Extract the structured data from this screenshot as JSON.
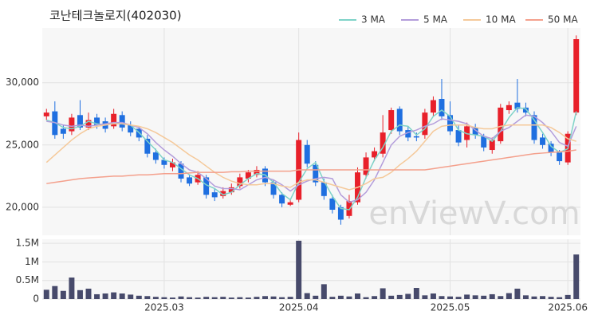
{
  "chart_data": [
    {
      "type": "candlestick",
      "title": "코난테크놀로지(402030)",
      "watermark": "enViewV.com",
      "up_color": "#e8202a",
      "down_color": "#1f6fe0",
      "open": [
        27300,
        27700,
        26300,
        26100,
        27400,
        26400,
        27200,
        26900,
        26500,
        27400,
        26600,
        26300,
        25500,
        24400,
        23800,
        23200,
        23500,
        22400,
        22000,
        22400,
        21200,
        20900,
        21200,
        21700,
        22300,
        22600,
        23100,
        22000,
        21000,
        20200,
        20600,
        25000,
        23400,
        22000,
        20700,
        20000,
        19300,
        20400,
        22600,
        24000,
        24300,
        26200,
        27900,
        26200,
        25700,
        25800,
        27600,
        28700,
        27400,
        26200,
        25400,
        26400,
        25700,
        24600,
        25300,
        27800,
        28400,
        28000,
        27400,
        25600,
        25100,
        24400,
        23600,
        27600
      ],
      "high": [
        27900,
        28500,
        26600,
        27500,
        28600,
        27600,
        27500,
        27200,
        27900,
        27700,
        26900,
        26500,
        25800,
        24700,
        24000,
        23900,
        23700,
        22600,
        22900,
        22600,
        21500,
        21600,
        21900,
        22700,
        23000,
        23300,
        23300,
        22200,
        21200,
        20600,
        26000,
        25400,
        23700,
        22300,
        21000,
        20200,
        21000,
        23200,
        24400,
        24800,
        27400,
        28000,
        28100,
        26500,
        26000,
        27900,
        28900,
        30300,
        28500,
        26600,
        26800,
        26700,
        25900,
        25600,
        28300,
        28500,
        30300,
        28400,
        27700,
        25900,
        25300,
        24600,
        26100,
        33800
      ],
      "low": [
        27000,
        25500,
        25500,
        25800,
        26200,
        26200,
        26300,
        26000,
        26300,
        26100,
        25700,
        25300,
        24000,
        23500,
        23100,
        22900,
        22000,
        21700,
        21800,
        20700,
        20500,
        20700,
        21000,
        21500,
        22000,
        22400,
        21700,
        20700,
        20000,
        20100,
        20400,
        23200,
        21700,
        20600,
        19500,
        18600,
        19100,
        20200,
        22300,
        23700,
        24000,
        25900,
        25800,
        25300,
        25300,
        25500,
        27300,
        27000,
        25800,
        24900,
        24800,
        25500,
        24500,
        24300,
        25100,
        27500,
        27600,
        27300,
        25100,
        24700,
        24100,
        23400,
        23400,
        27400
      ],
      "close": [
        27600,
        25800,
        25900,
        27200,
        26400,
        27000,
        26600,
        26300,
        27500,
        26400,
        26000,
        25600,
        24300,
        23800,
        23400,
        23600,
        22300,
        21900,
        22600,
        21000,
        20800,
        21300,
        21600,
        22400,
        22800,
        23000,
        22000,
        21000,
        20300,
        20400,
        25400,
        23500,
        22000,
        20900,
        19800,
        19000,
        20500,
        22800,
        24000,
        24500,
        26000,
        27800,
        26100,
        25600,
        25600,
        27600,
        28600,
        27300,
        26100,
        25200,
        26500,
        25800,
        24800,
        25400,
        28000,
        28200,
        27900,
        27600,
        25400,
        25000,
        24400,
        23700,
        25900,
        33500
      ],
      "series": [
        {
          "name": "3 MA",
          "color": "#7fd3c8",
          "values": [
            27000,
            26800,
            26400,
            26300,
            26500,
            26900,
            26700,
            26600,
            26800,
            26700,
            26600,
            26000,
            25300,
            24600,
            23800,
            23600,
            23100,
            22600,
            22300,
            21800,
            21500,
            21000,
            21200,
            21800,
            22300,
            22700,
            22600,
            22000,
            21100,
            20600,
            22000,
            23100,
            23600,
            22100,
            20900,
            19900,
            19800,
            20800,
            22400,
            23800,
            24800,
            26100,
            26600,
            26500,
            25800,
            26300,
            27300,
            27800,
            27300,
            26200,
            25900,
            25800,
            25700,
            25300,
            26100,
            27200,
            28000,
            27900,
            27000,
            26000,
            24900,
            24400,
            24700,
            27700
          ]
        },
        {
          "name": "5 MA",
          "color": "#b39ddb",
          "values": [
            26900,
            26800,
            26600,
            26500,
            26600,
            26500,
            26600,
            26700,
            26800,
            26800,
            26600,
            26400,
            25900,
            25200,
            24600,
            24100,
            23500,
            23000,
            22800,
            22300,
            21700,
            21500,
            21500,
            21400,
            21800,
            22200,
            22400,
            22200,
            21800,
            21300,
            21800,
            22100,
            22300,
            22400,
            22300,
            21000,
            20400,
            20600,
            21200,
            22200,
            23600,
            25000,
            25700,
            26000,
            26200,
            26500,
            26700,
            27100,
            27000,
            26900,
            26700,
            26200,
            25700,
            25500,
            26100,
            26400,
            26900,
            27400,
            27300,
            26800,
            26100,
            25200,
            24900,
            26500
          ]
        },
        {
          "name": "10 MA",
          "color": "#f5c99a",
          "values": [
            23600,
            24200,
            24800,
            25400,
            25900,
            26300,
            26500,
            26600,
            26700,
            26700,
            26600,
            26500,
            26300,
            26000,
            25600,
            25200,
            24700,
            24200,
            23800,
            23300,
            22800,
            22400,
            22100,
            21900,
            21800,
            21800,
            21900,
            21900,
            21700,
            21600,
            22000,
            22200,
            22200,
            22000,
            21800,
            21600,
            21400,
            21600,
            21900,
            22300,
            22400,
            22800,
            23400,
            23900,
            24500,
            25300,
            26100,
            26500,
            26600,
            26600,
            26600,
            26400,
            26300,
            26300,
            26500,
            26600,
            26600,
            26600,
            26600,
            26600,
            26400,
            26000,
            25500,
            25300
          ]
        },
        {
          "name": "50 MA",
          "color": "#f4a08c",
          "values": [
            21900,
            22000,
            22100,
            22200,
            22300,
            22350,
            22400,
            22450,
            22500,
            22500,
            22550,
            22600,
            22600,
            22650,
            22700,
            22700,
            22700,
            22750,
            22800,
            22800,
            22800,
            22800,
            22850,
            22850,
            22900,
            22900,
            22900,
            22900,
            22900,
            22900,
            23000,
            23000,
            23000,
            23000,
            23000,
            23000,
            23000,
            23000,
            23000,
            23000,
            23000,
            23000,
            23000,
            23000,
            23000,
            23000,
            23100,
            23200,
            23300,
            23400,
            23500,
            23600,
            23700,
            23800,
            23900,
            24000,
            24100,
            24200,
            24300,
            24350,
            24400,
            24450,
            24500,
            24600
          ]
        }
      ],
      "ylim": [
        17750,
        34400
      ],
      "yticks": [
        {
          "value": 20000,
          "label": "20,000"
        },
        {
          "value": 25000,
          "label": "25,000"
        },
        {
          "value": 30000,
          "label": "30,000"
        }
      ],
      "grid": true,
      "legend": "top-right"
    },
    {
      "type": "bar",
      "color": "#474a6b",
      "categories": [
        null,
        null,
        null,
        null,
        null,
        null,
        null,
        null,
        null,
        null,
        null,
        null,
        null,
        null,
        "2025.03",
        null,
        null,
        null,
        null,
        null,
        null,
        null,
        null,
        null,
        null,
        null,
        null,
        null,
        null,
        null,
        "2025.04",
        null,
        null,
        null,
        null,
        null,
        null,
        null,
        null,
        null,
        null,
        null,
        null,
        null,
        null,
        null,
        null,
        null,
        "2025.05",
        null,
        null,
        null,
        null,
        null,
        null,
        null,
        null,
        null,
        null,
        null,
        null,
        null,
        "2025.06",
        null
      ],
      "values": [
        250000,
        350000,
        220000,
        580000,
        240000,
        280000,
        130000,
        150000,
        180000,
        150000,
        120000,
        90000,
        80000,
        60000,
        50000,
        40000,
        70000,
        50000,
        40000,
        60000,
        50000,
        60000,
        40000,
        50000,
        40000,
        60000,
        80000,
        70000,
        50000,
        60000,
        1570000,
        160000,
        90000,
        400000,
        60000,
        90000,
        70000,
        150000,
        50000,
        80000,
        290000,
        90000,
        110000,
        140000,
        300000,
        100000,
        150000,
        80000,
        70000,
        60000,
        120000,
        100000,
        90000,
        130000,
        80000,
        160000,
        280000,
        100000,
        70000,
        80000,
        60000,
        50000,
        110000,
        1200000
      ],
      "ylim": [
        0,
        1610000
      ],
      "yticks": [
        0,
        {
          "value": 500000,
          "label": "0.5M"
        },
        {
          "value": 1000000,
          "label": "1M"
        },
        {
          "value": 1500000,
          "label": "1.5M"
        }
      ],
      "grid": true
    }
  ]
}
